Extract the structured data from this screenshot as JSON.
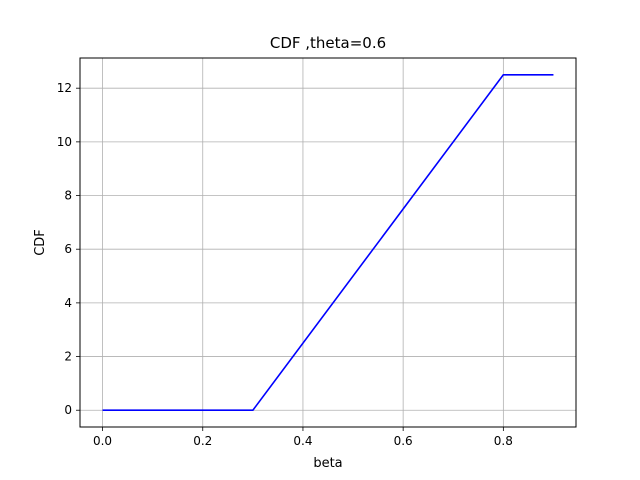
{
  "chart_data": {
    "type": "line",
    "title": "CDF ,theta=0.6",
    "xlabel": "beta",
    "ylabel": "CDF",
    "xlim": [
      -0.045,
      0.945
    ],
    "ylim": [
      -0.625,
      13.125
    ],
    "xticks": [
      0.0,
      0.2,
      0.4,
      0.6,
      0.8
    ],
    "xtick_labels": [
      "0.0",
      "0.2",
      "0.4",
      "0.6",
      "0.8"
    ],
    "yticks": [
      0,
      2,
      4,
      6,
      8,
      10,
      12
    ],
    "ytick_labels": [
      "0",
      "2",
      "4",
      "6",
      "8",
      "10",
      "12"
    ],
    "grid": true,
    "series": [
      {
        "color": "#0000ff",
        "x": [
          0.0,
          0.3,
          0.8,
          0.9
        ],
        "y": [
          0.0,
          0.0,
          12.5,
          12.5
        ]
      }
    ]
  }
}
